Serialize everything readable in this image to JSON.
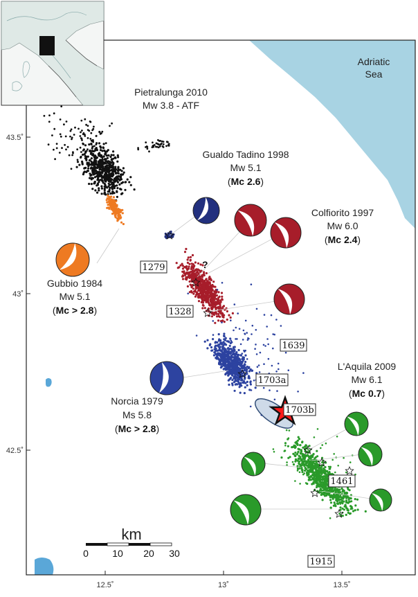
{
  "sea_label": [
    "Adriatic",
    "Sea"
  ],
  "lat_ticks": [
    "43.5˚",
    "43˚",
    "42.5˚"
  ],
  "lon_ticks": [
    "12.5˚",
    "13˚",
    "13.5˚"
  ],
  "events": [
    {
      "lines": [
        "Pietralunga 2010",
        "Mw 3.8 - ATF"
      ]
    },
    {
      "lines": [
        "Gualdo Tadino 1998",
        "Mw 5.1"
      ],
      "mc": "2.6"
    },
    {
      "lines": [
        "Colfiorito 1997",
        "Mw 6.0"
      ],
      "mc": "2.4"
    },
    {
      "lines": [
        "Gubbio 1984",
        "Mw 5.1"
      ],
      "mc": "> 2.8"
    },
    {
      "lines": [
        "Norcia 1979",
        "Ms 5.8"
      ],
      "mc": "> 2.8"
    },
    {
      "lines": [
        "L'Aquila 2009",
        "Mw 6.1"
      ],
      "mc": "0.7"
    }
  ],
  "mc_prefix": "Mc",
  "historic_quakes": [
    "1279",
    "1328",
    "1639",
    "1703a",
    "1703b",
    "1461",
    "1915"
  ],
  "question_mark": "?",
  "scale": {
    "unit": "km",
    "labels": [
      "0",
      "10",
      "20",
      "30"
    ]
  },
  "colors": {
    "sea": "#a8d3e3",
    "pietralunga": "#111111",
    "gubbio": "#ee7a22",
    "gualdo": "#22307e",
    "colfiorito": "#a71d2a",
    "norcia": "#2d43a0",
    "laquila": "#2a9a2a",
    "mainshock": "#ff1a1a"
  }
}
